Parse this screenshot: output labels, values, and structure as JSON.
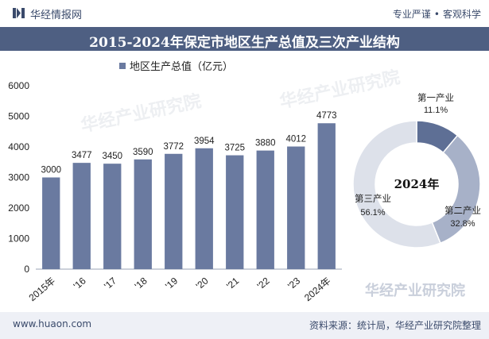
{
  "header": {
    "brand": "华经情报网",
    "slogan_left": "专业严谨",
    "slogan_right": "客观科学"
  },
  "title": "2015-2024年保定市地区生产总值及三次产业结构",
  "footer": {
    "url": "www.huaon.com",
    "source": "资料来源：统计局，华经产业研究院整理"
  },
  "watermarks": [
    "华经产业研究院",
    "华经产业研究院",
    "华经产业研究院"
  ],
  "colors": {
    "bar": "#6a7aa0",
    "title_bg": "#4e5f82",
    "pie_primary": "#5e6f95",
    "pie_secondary": "#a7b1c8",
    "pie_tertiary": "#dde1ea"
  },
  "chart_data": [
    {
      "type": "bar",
      "title": "",
      "legend": [
        "地区生产总值（亿元）"
      ],
      "legend_placement": "top",
      "categories": [
        "2015年",
        "'16",
        "'17",
        "'18",
        "'19",
        "'20",
        "'21",
        "'22",
        "'23",
        "2024年"
      ],
      "values": [
        3000,
        3477,
        3450,
        3590,
        3772,
        3954,
        3725,
        3880,
        4012,
        4773
      ],
      "ylim": [
        0,
        6000
      ],
      "yticks": [
        0,
        1000,
        2000,
        3000,
        4000,
        5000,
        6000
      ],
      "grid": false
    },
    {
      "type": "pie",
      "donut": true,
      "center_label": "2024年",
      "slices": [
        {
          "label": "第一产业",
          "value": 11.1,
          "display": "11.1%"
        },
        {
          "label": "第二产业",
          "value": 32.8,
          "display": "32.8%"
        },
        {
          "label": "第三产业",
          "value": 56.1,
          "display": "56.1%"
        }
      ]
    }
  ]
}
